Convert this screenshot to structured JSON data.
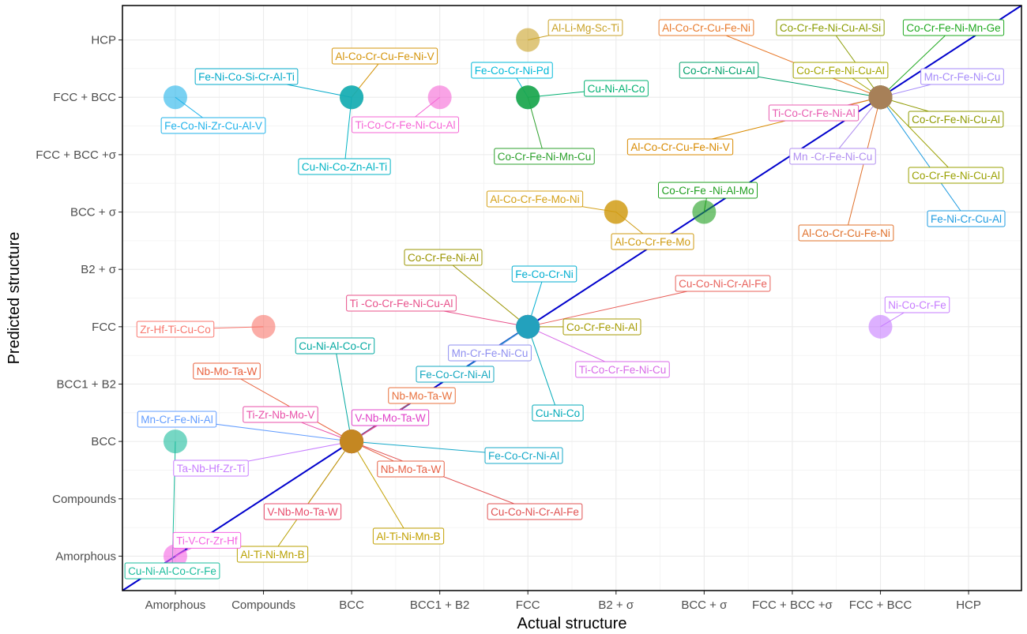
{
  "chart_data": {
    "type": "scatter",
    "xlabel": "Actual structure",
    "ylabel": "Predicted structure",
    "x_categories": [
      "Amorphous",
      "Compounds",
      "BCC",
      "BCC1 + B2",
      "FCC",
      "B2 + σ",
      "BCC + σ",
      "FCC + BCC +σ",
      "FCC + BCC",
      "HCP"
    ],
    "y_categories": [
      "Amorphous",
      "Compounds",
      "BCC",
      "BCC1 + B2",
      "FCC",
      "B2 + σ",
      "BCC + σ",
      "FCC + BCC +σ",
      "FCC + BCC",
      "HCP"
    ],
    "grid": true,
    "legend": "none",
    "reference_line": "y = x",
    "points": [
      {
        "label": "Al-Li-Mg-Sc-Ti",
        "actual": "FCC",
        "predicted": "HCP",
        "color": "#c9a227"
      },
      {
        "label": "Al-Co-Cr-Cu-Fe-Ni-V",
        "actual": "BCC",
        "predicted": "FCC + BCC",
        "color": "#d4940a"
      },
      {
        "label": "Fe-Ni-Co-Si-Cr-Al-Ti",
        "actual": "BCC",
        "predicted": "FCC + BCC",
        "color": "#00a9c9"
      },
      {
        "label": "Cu-Ni-Co-Zn-Al-Ti",
        "actual": "BCC",
        "predicted": "FCC + BCC",
        "color": "#00b3c4"
      },
      {
        "label": "Ti-Co-Cr-Fe-Ni-Cu-Al",
        "actual": "BCC1 + B2",
        "predicted": "FCC + BCC",
        "color": "#f565d5"
      },
      {
        "label": "Fe-Co-Ni-Zr-Cu-Al-V",
        "actual": "Amorphous",
        "predicted": "FCC + BCC",
        "color": "#1fb2ea"
      },
      {
        "label": "Fe-Co-Cr-Ni-Pd",
        "actual": "FCC",
        "predicted": "FCC + BCC",
        "color": "#00b8d8"
      },
      {
        "label": "Cu-Ni-Al-Co",
        "actual": "FCC",
        "predicted": "FCC + BCC",
        "color": "#00b070"
      },
      {
        "label": "Co-Cr-Fe-Ni-Mn-Cu",
        "actual": "FCC",
        "predicted": "FCC + BCC",
        "color": "#2ca02c"
      },
      {
        "label": "Al-Co-Cr-Cu-Fe-Ni",
        "actual": "FCC + BCC",
        "predicted": "FCC + BCC",
        "color": "#e87b2d"
      },
      {
        "label": "Co-Cr-Fe-Ni-Cu-Al-Si",
        "actual": "FCC + BCC",
        "predicted": "FCC + BCC",
        "color": "#8a9b00"
      },
      {
        "label": "Co-Cr-Fe-Ni-Mn-Ge",
        "actual": "FCC + BCC",
        "predicted": "FCC + BCC",
        "color": "#1ea81e"
      },
      {
        "label": "Co-Cr-Ni-Cu-Al",
        "actual": "FCC + BCC",
        "predicted": "FCC + BCC",
        "color": "#00a06a"
      },
      {
        "label": "Co-Cr-Fe-Ni-Cu-Al",
        "actual": "FCC + BCC",
        "predicted": "FCC + BCC",
        "color": "#a3a500"
      },
      {
        "label": "Mn-Cr-Fe-Ni-Cu",
        "actual": "FCC + BCC",
        "predicted": "FCC + BCC",
        "color": "#a58afa"
      },
      {
        "label": "Ti-Co-Cr-Fe-Ni-Al",
        "actual": "FCC + BCC",
        "predicted": "FCC + BCC",
        "color": "#e85cb0"
      },
      {
        "label": "Co-Cr-Fe-Ni-Cu-Al",
        "actual": "FCC + BCC",
        "predicted": "FCC + BCC",
        "color": "#8f9a00"
      },
      {
        "label": "Al-Co-Cr-Cu-Fe-Ni-V",
        "actual": "FCC + BCC",
        "predicted": "FCC + BCC",
        "color": "#d88a00"
      },
      {
        "label": "Mn -Cr-Fe-Ni-Cu",
        "actual": "FCC + BCC",
        "predicted": "FCC + BCC",
        "color": "#b08ef0"
      },
      {
        "label": "Co-Cr-Fe-Ni-Cu-Al",
        "actual": "FCC + BCC",
        "predicted": "FCC + BCC",
        "color": "#9aa000"
      },
      {
        "label": "Fe-Ni-Cr-Cu-Al",
        "actual": "FCC + BCC",
        "predicted": "FCC + BCC",
        "color": "#1e9be0"
      },
      {
        "label": "Al-Co-Cr-Cu-Fe-Ni",
        "actual": "FCC + BCC",
        "predicted": "FCC + BCC",
        "color": "#e0702a"
      },
      {
        "label": "Al-Co-Cr-Fe-Mo-Ni",
        "actual": "B2 + σ",
        "predicted": "BCC + σ",
        "color": "#d4a017"
      },
      {
        "label": "Al-Co-Cr-Fe-Mo",
        "actual": "B2 + σ",
        "predicted": "BCC + σ",
        "color": "#cf9a10"
      },
      {
        "label": "Co-Cr-Fe -Ni-Al-Mo",
        "actual": "BCC + σ",
        "predicted": "BCC + σ",
        "color": "#1e9e1e"
      },
      {
        "label": "Co-Cr-Fe-Ni-Al",
        "actual": "FCC",
        "predicted": "FCC",
        "color": "#9a9400"
      },
      {
        "label": "Fe-Co-Cr-Ni",
        "actual": "FCC",
        "predicted": "FCC",
        "color": "#00aed0"
      },
      {
        "label": "Cu-Co-Ni-Cr-Al-Fe",
        "actual": "FCC",
        "predicted": "FCC",
        "color": "#e8605a"
      },
      {
        "label": "Ti -Co-Cr-Fe-Ni-Cu-Al",
        "actual": "FCC",
        "predicted": "FCC",
        "color": "#e8508a"
      },
      {
        "label": "Co-Cr-Fe-Ni-Al",
        "actual": "FCC",
        "predicted": "FCC",
        "color": "#a49a00"
      },
      {
        "label": "Mn-Cr-Fe-Ni-Cu",
        "actual": "FCC",
        "predicted": "FCC",
        "color": "#8f8ff0"
      },
      {
        "label": "Ti-Co-Cr-Fe-Ni-Cu",
        "actual": "FCC",
        "predicted": "FCC",
        "color": "#d86ae8"
      },
      {
        "label": "Fe-Co-Cr-Ni-Al",
        "actual": "FCC",
        "predicted": "FCC",
        "color": "#14a8c0"
      },
      {
        "label": "Cu-Ni-Co",
        "actual": "FCC",
        "predicted": "FCC",
        "color": "#00aab8"
      },
      {
        "label": "Zr-Hf-Ti-Cu-Co",
        "actual": "Compounds",
        "predicted": "FCC",
        "color": "#f8766d"
      },
      {
        "label": "Ni-Co-Cr-Fe",
        "actual": "FCC + BCC",
        "predicted": "FCC",
        "color": "#c77cff"
      },
      {
        "label": "Cu-Ni-Al-Co-Cr",
        "actual": "BCC",
        "predicted": "BCC",
        "color": "#00a8a0"
      },
      {
        "label": "Nb-Mo-Ta-W",
        "actual": "BCC",
        "predicted": "BCC",
        "color": "#e8603c"
      },
      {
        "label": "Ti-Zr-Nb-Mo-V",
        "actual": "BCC",
        "predicted": "BCC",
        "color": "#e84fa8"
      },
      {
        "label": "V-Nb-Mo-Ta-W",
        "actual": "BCC",
        "predicted": "BCC",
        "color": "#e040c8"
      },
      {
        "label": "Nb-Mo-Ta-W",
        "actual": "BCC",
        "predicted": "BCC",
        "color": "#e8703c"
      },
      {
        "label": "Fe-Co-Cr-Ni-Al",
        "actual": "BCC",
        "predicted": "BCC",
        "color": "#14a8c8"
      },
      {
        "label": "Nb-Mo-Ta-W",
        "actual": "BCC",
        "predicted": "BCC",
        "color": "#e66045"
      },
      {
        "label": "Ta-Nb-Hf-Zr-Ti",
        "actual": "BCC",
        "predicted": "BCC",
        "color": "#c77cff"
      },
      {
        "label": "Mn-Cr-Fe-Ni-Al",
        "actual": "BCC",
        "predicted": "BCC",
        "color": "#619cff"
      },
      {
        "label": "Cu-Co-Ni-Cr-Al-Fe",
        "actual": "BCC",
        "predicted": "BCC",
        "color": "#e05050"
      },
      {
        "label": "Al-Ti-Ni-Mn-B",
        "actual": "BCC",
        "predicted": "BCC",
        "color": "#c2a000"
      },
      {
        "label": "V-Nb-Mo-Ta-W",
        "actual": "BCC",
        "predicted": "BCC",
        "color": "#e84a6a"
      },
      {
        "label": "Al-Ti-Ni-Mn-B",
        "actual": "BCC",
        "predicted": "BCC",
        "color": "#b8a000"
      },
      {
        "label": "Cu-Ni-Al-Co-Cr-Fe",
        "actual": "Amorphous",
        "predicted": "BCC",
        "color": "#1abc9c"
      },
      {
        "label": "Ti-V-Cr-Zr-Hf",
        "actual": "Amorphous",
        "predicted": "Amorphous",
        "color": "#f564e3"
      }
    ]
  }
}
